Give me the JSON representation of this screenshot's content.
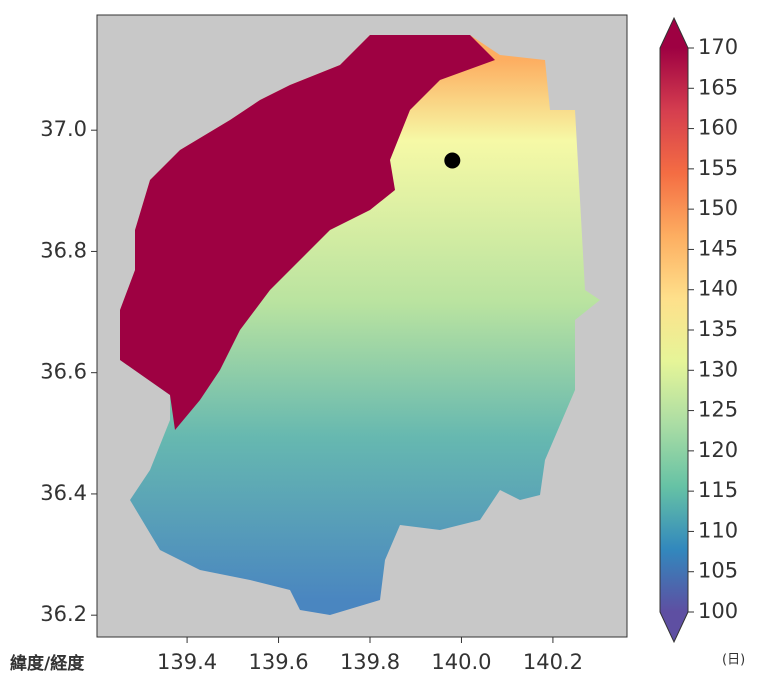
{
  "chart_data": {
    "type": "map",
    "corner_label": "緯度/経度",
    "colorbar_label": "(日)",
    "xlim": [
      139.203,
      140.362
    ],
    "ylim": [
      36.164,
      37.19
    ],
    "xticks": [
      139.4,
      139.6,
      139.8,
      {
        "value": 140,
        "label": "140.0"
      },
      140.2
    ],
    "yticks": [
      36.2,
      36.4,
      36.6,
      36.8,
      {
        "value": 37,
        "label": "37.0"
      }
    ],
    "colorbar": {
      "lim": [
        100,
        170
      ],
      "ticks": [
        100,
        105,
        110,
        115,
        120,
        125,
        130,
        135,
        140,
        145,
        150,
        155,
        160,
        165,
        170
      ],
      "colors": [
        "#5e4fa2",
        "#3288bd",
        "#66c2a5",
        "#abdda4",
        "#e6f598",
        "#fee08b",
        "#fdae61",
        "#f46d43",
        "#d53e4f",
        "#9e0142"
      ]
    },
    "marker": {
      "x": 139.98,
      "y": 36.95,
      "color": "#000000"
    }
  }
}
